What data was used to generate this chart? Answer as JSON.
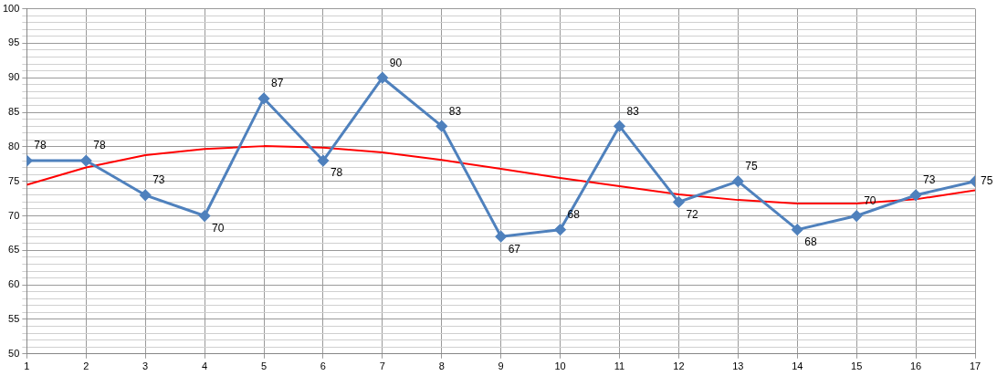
{
  "chart_data": {
    "type": "line",
    "xlim": [
      1,
      17
    ],
    "xticks": [
      1,
      2,
      3,
      4,
      5,
      6,
      7,
      8,
      9,
      10,
      11,
      12,
      13,
      14,
      15,
      16,
      17
    ],
    "ylim": [
      50,
      100
    ],
    "yticks": [
      50,
      {
        "value": 51,
        "label": null
      },
      {
        "value": 52,
        "label": null
      },
      {
        "value": 53,
        "label": null
      },
      {
        "value": 54,
        "label": null
      },
      55,
      {
        "value": 56,
        "label": null
      },
      {
        "value": 57,
        "label": null
      },
      {
        "value": 58,
        "label": null
      },
      {
        "value": 59,
        "label": null
      },
      60,
      {
        "value": 61,
        "label": null
      },
      {
        "value": 62,
        "label": null
      },
      {
        "value": 63,
        "label": null
      },
      {
        "value": 64,
        "label": null
      },
      65,
      {
        "value": 66,
        "label": null
      },
      {
        "value": 67,
        "label": null
      },
      {
        "value": 68,
        "label": null
      },
      {
        "value": 69,
        "label": null
      },
      70,
      {
        "value": 71,
        "label": null
      },
      {
        "value": 72,
        "label": null
      },
      {
        "value": 73,
        "label": null
      },
      {
        "value": 74,
        "label": null
      },
      75,
      {
        "value": 76,
        "label": null
      },
      {
        "value": 77,
        "label": null
      },
      {
        "value": 78,
        "label": null
      },
      {
        "value": 79,
        "label": null
      },
      80,
      {
        "value": 81,
        "label": null
      },
      {
        "value": 82,
        "label": null
      },
      {
        "value": 83,
        "label": null
      },
      {
        "value": 84,
        "label": null
      },
      85,
      {
        "value": 86,
        "label": null
      },
      {
        "value": 87,
        "label": null
      },
      {
        "value": 88,
        "label": null
      },
      {
        "value": 89,
        "label": null
      },
      90,
      {
        "value": 91,
        "label": null
      },
      {
        "value": 92,
        "label": null
      },
      {
        "value": 93,
        "label": null
      },
      {
        "value": 94,
        "label": null
      },
      95,
      {
        "value": 96,
        "label": null
      },
      {
        "value": 97,
        "label": null
      },
      {
        "value": 98,
        "label": null
      },
      {
        "value": 99,
        "label": null
      },
      100
    ],
    "grid": true,
    "legend": false,
    "series": [
      {
        "color": "#4f81bd",
        "marker": "diamond",
        "data_labels": true,
        "x": [
          1,
          2,
          3,
          4,
          5,
          6,
          7,
          8,
          9,
          10,
          11,
          12,
          13,
          14,
          15,
          16,
          17
        ],
        "values": [
          78,
          78,
          73,
          70,
          87,
          78,
          90,
          83,
          67,
          68,
          83,
          72,
          75,
          68,
          70,
          73,
          75
        ]
      },
      {
        "type": "line",
        "color": "#ff0000",
        "marker": "none",
        "x": [
          1,
          2,
          3,
          4,
          5,
          6,
          7,
          8,
          9,
          10,
          11,
          12,
          13,
          14,
          15,
          16,
          17
        ],
        "values": [
          74.5,
          77,
          78.8,
          79.7,
          80.1,
          79.9,
          79.2,
          78.1,
          76.8,
          75.5,
          74.3,
          73.1,
          72.3,
          71.8,
          71.8,
          72.4,
          73.7
        ]
      }
    ]
  }
}
